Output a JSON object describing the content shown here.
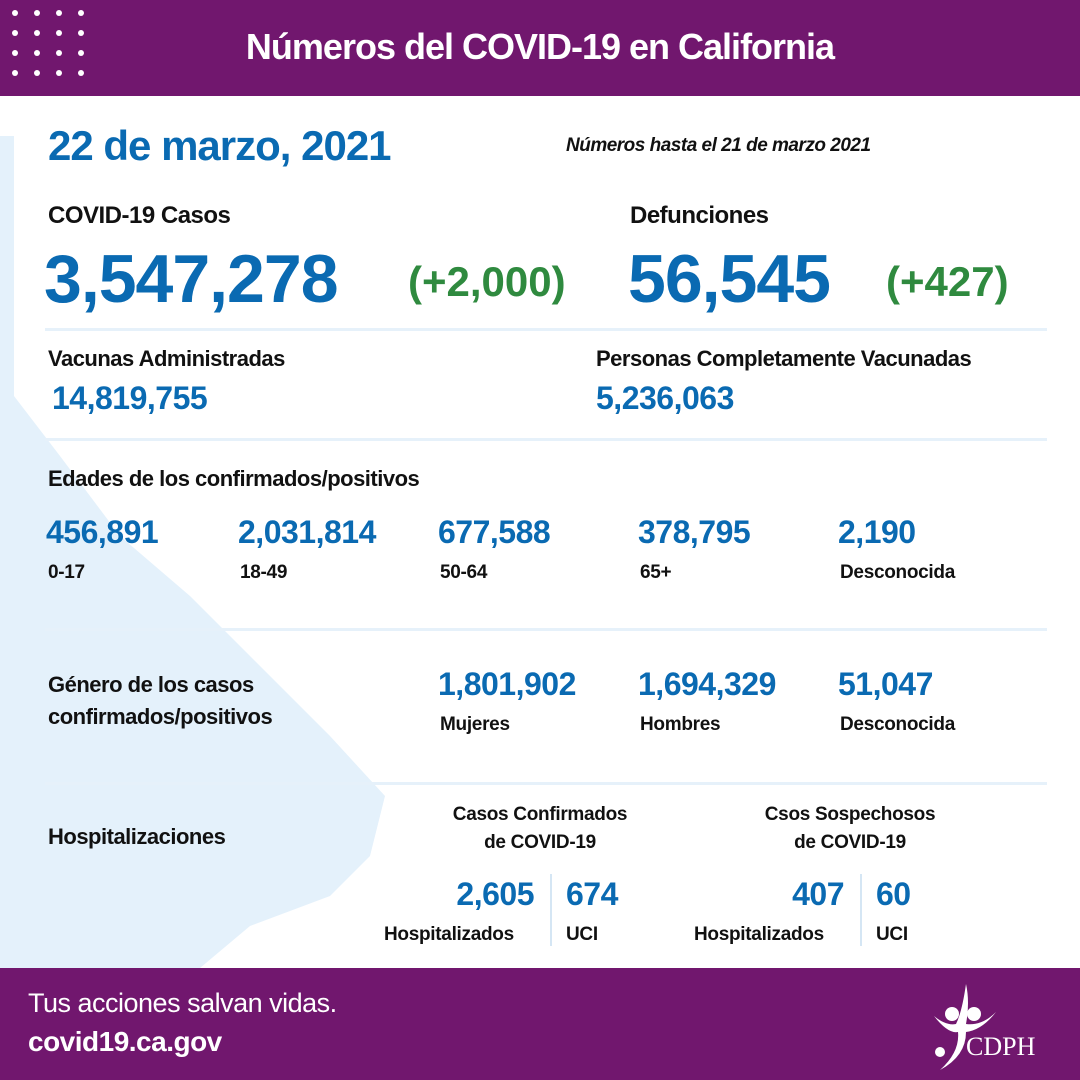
{
  "header": {
    "title": "Números del COVID-19 en California"
  },
  "date": "22 de marzo, 2021",
  "as_of": "Números hasta el 21 de marzo 2021",
  "cases": {
    "label": "COVID-19 Casos",
    "value": "3,547,278",
    "change": "(+2,000)"
  },
  "deaths": {
    "label": "Defunciones",
    "value": "56,545",
    "change": "(+427)"
  },
  "vaccines": {
    "label": "Vacunas Administradas",
    "value": "14,819,755"
  },
  "fully_vaccinated": {
    "label": "Personas Completamente Vacunadas",
    "value": "5,236,063"
  },
  "ages": {
    "label": "Edades de los confirmados/positivos",
    "items": [
      {
        "value": "456,891",
        "label": "0-17"
      },
      {
        "value": "2,031,814",
        "label": "18-49"
      },
      {
        "value": "677,588",
        "label": "50-64"
      },
      {
        "value": "378,795",
        "label": "65+"
      },
      {
        "value": "2,190",
        "label": "Desconocida"
      }
    ]
  },
  "gender": {
    "label_line1": "Género de los casos",
    "label_line2": "confirmados/positivos",
    "items": [
      {
        "value": "1,801,902",
        "label": "Mujeres"
      },
      {
        "value": "1,694,329",
        "label": "Hombres"
      },
      {
        "value": "51,047",
        "label": "Desconocida"
      }
    ]
  },
  "hosp": {
    "label": "Hospitalizaciones",
    "confirmed": {
      "title1": "Casos Confirmados",
      "title2": "de COVID-19",
      "hosp_value": "2,605",
      "hosp_label": "Hospitalizados",
      "icu_value": "674",
      "icu_label": "UCI"
    },
    "suspected": {
      "title1": "Csos Sospechosos",
      "title2": "de COVID-19",
      "hosp_value": "407",
      "hosp_label": "Hospitalizados",
      "icu_value": "60",
      "icu_label": "UCI"
    }
  },
  "footer": {
    "tagline": "Tus acciones salvan vidas.",
    "url": "covid19.ca.gov",
    "logo_text": "CDPH"
  },
  "colors": {
    "purple": "#71176e",
    "blue": "#0a6ab2",
    "green": "#2f8a3f"
  }
}
